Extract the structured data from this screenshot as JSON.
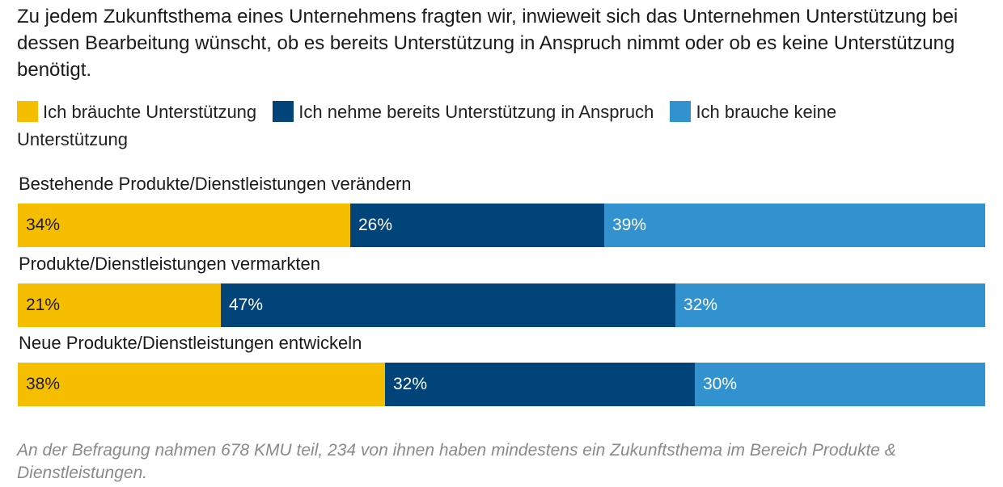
{
  "chart_data": {
    "type": "bar",
    "orientation": "horizontal",
    "stacked": true,
    "title": "Zu jedem Zukunftsthema eines Unternehmens fragten wir, inwieweit sich das Unternehmen Unterstützung bei dessen Bearbeitung wünscht, ob es bereits Unterstützung in Anspruch nimmt oder ob es keine Unterstützung benötigt.",
    "categories": [
      "Bestehende Produkte/Dienstleistungen verändern",
      "Produkte/Dienstleistungen vermarkten",
      "Neue Produkte/Dienstleistungen entwickeln"
    ],
    "series": [
      {
        "name": "Ich bräuchte Unterstützung",
        "color": "#f5bf00",
        "text_color": "#1a1a1a",
        "values": [
          34,
          21,
          38
        ],
        "labels": [
          "34%",
          "21%",
          "38%"
        ]
      },
      {
        "name": "Ich nehme bereits Unterstützung in Anspruch",
        "color": "#004479",
        "text_color": "#ffffff",
        "values": [
          26,
          47,
          32
        ],
        "labels": [
          "26%",
          "47%",
          "32%"
        ]
      },
      {
        "name": "Ich brauche keine Unterstützung",
        "color": "#3192cf",
        "text_color": "#ffffff",
        "values": [
          39,
          32,
          30
        ],
        "labels": [
          "39%",
          "32%",
          "30%"
        ]
      }
    ],
    "unit": "%",
    "legend_position": "top",
    "grid": false
  },
  "note": "An der Befragung nahmen 678 KMU teil, 234 von ihnen haben mindestens ein Zukunftsthema im Bereich Produkte & Dienstleistungen."
}
